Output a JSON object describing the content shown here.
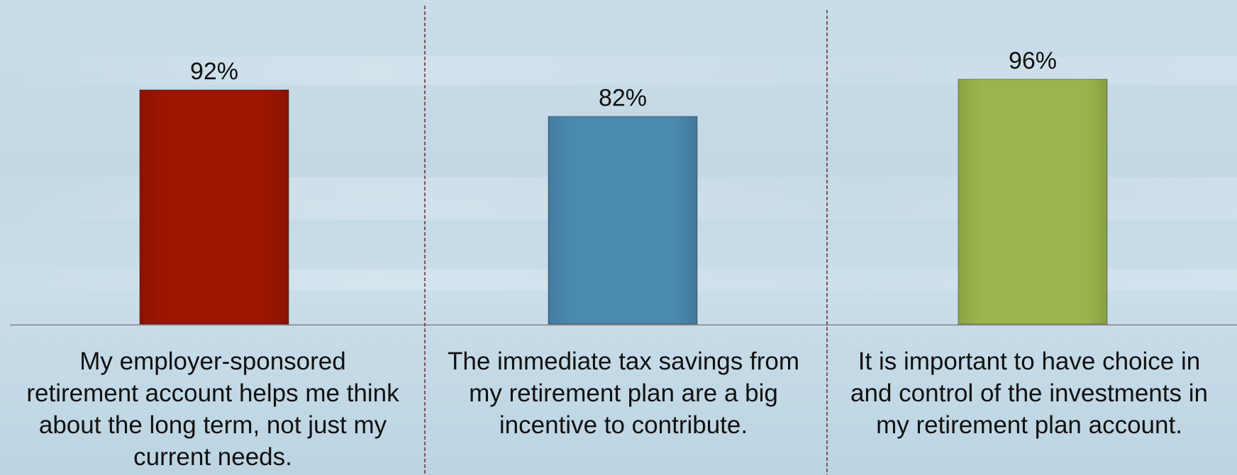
{
  "chart_data": {
    "type": "bar",
    "categories": [
      "My employer-sponsored retirement account helps me think about the long term, not just my current needs.",
      "The immediate tax savings from my retirement plan are a big incentive to contribute.",
      "It is important to have choice in and control of the investments in my retirement plan account."
    ],
    "values": [
      92,
      82,
      96
    ],
    "value_labels": [
      "92%",
      "82%",
      "96%"
    ],
    "colors": [
      "#9b1500",
      "#4a89b0",
      "#9bb54c"
    ],
    "ylim": [
      0,
      100
    ],
    "grid": false,
    "legend": "none"
  }
}
